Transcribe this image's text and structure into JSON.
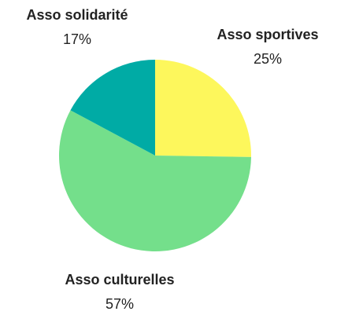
{
  "chart_data": {
    "type": "pie",
    "categories": [
      "Asso sportives",
      "Asso culturelles",
      "Asso solidarité"
    ],
    "values": [
      25,
      57,
      17
    ],
    "value_labels": [
      "25%",
      "57%",
      "17%"
    ],
    "colors": [
      "#fdf75c",
      "#74df8b",
      "#00aba5"
    ]
  }
}
